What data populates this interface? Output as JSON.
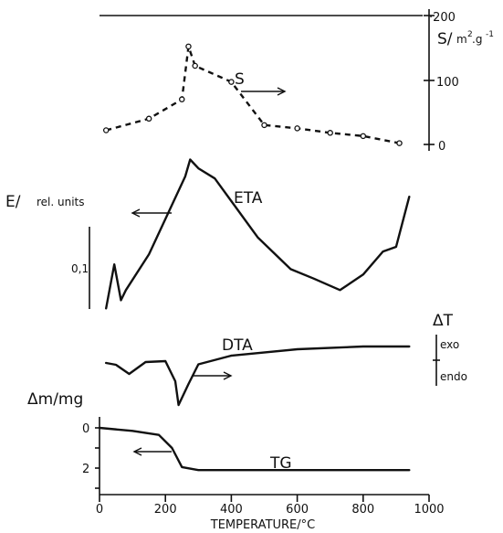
{
  "chart_data": {
    "type": "line",
    "x_axis": {
      "label": "TEMPERATURE/°C",
      "range": [
        0,
        1000
      ],
      "ticks": [
        "0",
        "200",
        "400",
        "600",
        "800",
        "1000"
      ]
    },
    "s_axis": {
      "label_main": "S/",
      "label_unit": "m",
      "label_exp1": "2",
      "label_g": ".g",
      "label_exp2": "-1",
      "ticks": [
        "·200",
        "100",
        "0"
      ]
    },
    "eta_label": "E/",
    "eta_unit": "rel. units",
    "eta_scale": "0,1",
    "dta_axis_symbol": "ΔT",
    "exo_label": "exo",
    "endo_label": "endo",
    "tg_axis_label": "Δm/mg",
    "tg_ticks": [
      "0",
      "2"
    ],
    "series": [
      {
        "name": "S",
        "style": "dashed-markers",
        "x": [
          20,
          150,
          250,
          270,
          290,
          400,
          500,
          600,
          700,
          800,
          910
        ],
        "y": [
          22,
          40,
          70,
          152,
          122,
          97,
          30,
          25,
          18,
          13,
          2
        ]
      },
      {
        "name": "ETA",
        "style": "solid",
        "x": [
          20,
          45,
          65,
          80,
          150,
          260,
          275,
          300,
          350,
          480,
          580,
          650,
          730,
          800,
          860,
          900,
          940
        ],
        "y": [
          0.05,
          0.7,
          0.17,
          0.32,
          0.85,
          2.0,
          2.25,
          2.12,
          1.97,
          1.1,
          0.63,
          0.49,
          0.32,
          0.55,
          0.89,
          0.96,
          1.7
        ]
      },
      {
        "name": "DTA",
        "style": "solid",
        "x": [
          20,
          50,
          90,
          140,
          200,
          230,
          240,
          270,
          300,
          400,
          600,
          800,
          940
        ],
        "y": [
          0,
          -0.2,
          -1.2,
          0.1,
          0.2,
          -2.0,
          -4.6,
          -2.3,
          -0.15,
          0.8,
          1.5,
          1.8,
          1.8
        ]
      },
      {
        "name": "TG",
        "style": "solid",
        "x": [
          0,
          100,
          180,
          220,
          250,
          300,
          600,
          940
        ],
        "y": [
          0,
          0.15,
          0.35,
          1.0,
          1.95,
          2.1,
          2.1,
          2.1
        ]
      }
    ]
  }
}
